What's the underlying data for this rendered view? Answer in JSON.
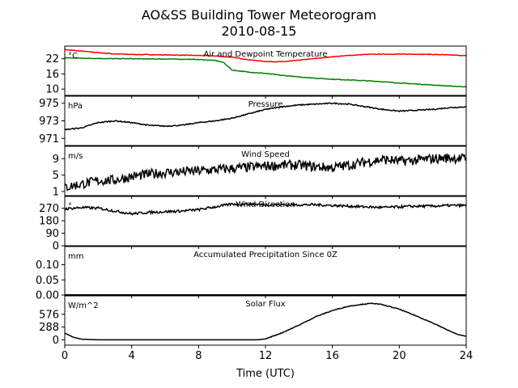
{
  "title_line1": "AO&SS Building Tower Meteorogram",
  "title_line2": "2010-08-15",
  "chart_data": [
    {
      "type": "line",
      "title": "Air and Dewpoint Temperature",
      "unit": "°C",
      "ylim": [
        7.5,
        27
      ],
      "yticks": [
        10,
        16,
        22
      ],
      "xlim": [
        0,
        24
      ],
      "series": [
        {
          "color": "#ff0000",
          "x": [
            0,
            1,
            2,
            3,
            4,
            5,
            6,
            7,
            8,
            9,
            10,
            11,
            12,
            13,
            14,
            15,
            16,
            17,
            18,
            19,
            20,
            21,
            22,
            23,
            24
          ],
          "values": [
            25.6,
            25.0,
            24.4,
            23.9,
            23.7,
            23.6,
            23.5,
            23.4,
            23.3,
            23.1,
            22.6,
            21.6,
            20.9,
            20.8,
            21.4,
            22.1,
            22.8,
            23.3,
            23.7,
            23.8,
            23.8,
            23.8,
            23.7,
            23.5,
            23.2
          ]
        },
        {
          "color": "#008000",
          "x": [
            0,
            1,
            2,
            3,
            4,
            5,
            6,
            7,
            8,
            9,
            9.5,
            10,
            11,
            12,
            13,
            14,
            15,
            16,
            17,
            18,
            19,
            20,
            21,
            22,
            23,
            24
          ],
          "values": [
            22.4,
            22.2,
            22.1,
            22.0,
            22.0,
            21.9,
            21.9,
            21.8,
            21.7,
            21.3,
            20.5,
            17.5,
            16.7,
            16.2,
            15.4,
            14.8,
            14.3,
            13.9,
            13.6,
            13.3,
            12.9,
            12.4,
            12.0,
            11.6,
            11.2,
            10.9
          ]
        }
      ]
    },
    {
      "type": "line",
      "title": "Pressure",
      "unit": "hPa",
      "ylim": [
        970.2,
        975.8
      ],
      "yticks": [
        971,
        973,
        975
      ],
      "xlim": [
        0,
        24
      ],
      "series": [
        {
          "color": "#000000",
          "x": [
            0,
            1,
            2,
            3,
            4,
            5,
            6,
            7,
            8,
            9,
            10,
            11,
            12,
            13,
            14,
            15,
            16,
            17,
            18,
            19,
            20,
            21,
            22,
            23,
            24
          ],
          "values": [
            972.0,
            972.2,
            972.8,
            973.0,
            972.8,
            972.5,
            972.4,
            972.5,
            972.8,
            973.0,
            973.3,
            973.8,
            974.3,
            974.6,
            974.8,
            974.9,
            975.0,
            974.9,
            974.6,
            974.3,
            974.1,
            974.2,
            974.3,
            974.5,
            974.6
          ]
        }
      ]
    },
    {
      "type": "line",
      "title": "Wind Speed",
      "unit": "m/s",
      "ylim": [
        0,
        12
      ],
      "yticks": [
        1,
        5,
        9
      ],
      "xlim": [
        0,
        24
      ],
      "series": [
        {
          "color": "#000000",
          "x": [
            0,
            1,
            2,
            3,
            4,
            5,
            6,
            7,
            8,
            9,
            10,
            11,
            12,
            13,
            14,
            15,
            16,
            17,
            18,
            19,
            20,
            21,
            22,
            23,
            24
          ],
          "values": [
            2.0,
            2.8,
            3.6,
            3.8,
            4.6,
            5.2,
            5.6,
            5.8,
            6.0,
            6.3,
            6.6,
            6.9,
            7.2,
            7.4,
            7.4,
            7.0,
            6.8,
            7.4,
            8.2,
            8.8,
            8.4,
            8.6,
            9.0,
            9.2,
            9.0
          ]
        }
      ]
    },
    {
      "type": "line",
      "title": "Wind Direction",
      "unit": "°",
      "ylim": [
        0,
        355
      ],
      "yticks": [
        0,
        90,
        180,
        270
      ],
      "xlim": [
        0,
        24
      ],
      "series": [
        {
          "color": "#000000",
          "x": [
            0,
            1,
            2,
            3,
            4,
            5,
            6,
            7,
            8,
            9,
            10,
            11,
            12,
            13,
            14,
            15,
            16,
            17,
            18,
            19,
            20,
            21,
            22,
            23,
            24
          ],
          "values": [
            265,
            275,
            270,
            250,
            230,
            240,
            245,
            250,
            260,
            280,
            300,
            300,
            295,
            295,
            295,
            295,
            290,
            285,
            280,
            275,
            280,
            285,
            285,
            290,
            290
          ]
        }
      ]
    },
    {
      "type": "line",
      "title": "Accumulated Precipitation Since 0Z",
      "unit": "mm",
      "ylim": [
        0,
        0.16
      ],
      "yticks": [
        0.0,
        0.05,
        0.1
      ],
      "ytick_labels": [
        "0.00",
        "0.05",
        "0.10"
      ],
      "xlim": [
        0,
        24
      ],
      "series": [
        {
          "color": "#000000",
          "x": [
            0,
            24
          ],
          "values": [
            0.0,
            0.0
          ]
        }
      ]
    },
    {
      "type": "line",
      "title": "Solar Flux",
      "unit": "W/m^2",
      "ylim": [
        -120,
        990
      ],
      "yticks": [
        0,
        288,
        576
      ],
      "xlim": [
        0,
        24
      ],
      "xticks": [
        0,
        4,
        8,
        12,
        16,
        20,
        24
      ],
      "xlabel": "Time (UTC)",
      "series": [
        {
          "color": "#000000",
          "x": [
            0,
            0.5,
            1,
            2,
            4,
            6,
            8,
            10,
            11.5,
            12,
            13,
            14,
            15,
            16,
            17,
            18,
            18.5,
            19,
            20,
            21,
            22,
            23,
            23.5,
            24
          ],
          "values": [
            150,
            60,
            15,
            0,
            0,
            0,
            0,
            0,
            0,
            20,
            160,
            330,
            520,
            660,
            760,
            810,
            820,
            790,
            690,
            540,
            380,
            200,
            120,
            80
          ]
        }
      ]
    }
  ]
}
